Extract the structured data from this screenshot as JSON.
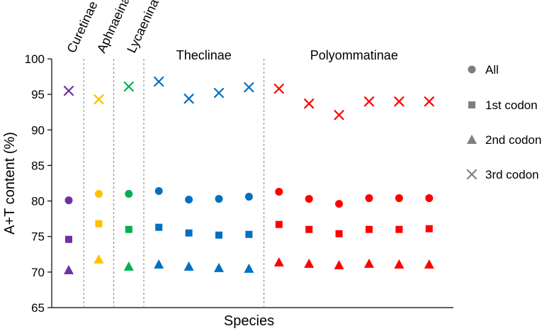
{
  "chart_data": {
    "type": "scatter",
    "title": "",
    "xlabel": "Species",
    "ylabel": "A+T content (%)",
    "ylim": [
      65,
      100
    ],
    "yticks": [
      65,
      70,
      75,
      80,
      85,
      90,
      95,
      100
    ],
    "grid": false,
    "legend_position": "right",
    "groups": [
      {
        "name": "Curetinae",
        "color": "#7030A0",
        "count": 1
      },
      {
        "name": "Aphnaeinae",
        "color": "#FFC000",
        "count": 1
      },
      {
        "name": "Lycaeninae",
        "color": "#00B050",
        "count": 1
      },
      {
        "name": "Theclinae",
        "color": "#0070C0",
        "count": 4
      },
      {
        "name": "Polyommatinae",
        "color": "#FF0000",
        "count": 6
      }
    ],
    "species_group": [
      0,
      1,
      2,
      3,
      3,
      3,
      3,
      4,
      4,
      4,
      4,
      4,
      4
    ],
    "series": [
      {
        "name": "All",
        "marker": "circle",
        "values": [
          80.1,
          81.0,
          81.0,
          81.4,
          80.2,
          80.3,
          80.6,
          81.3,
          80.3,
          79.6,
          80.4,
          80.4,
          80.4
        ]
      },
      {
        "name": "1st codon",
        "marker": "square",
        "values": [
          74.6,
          76.8,
          76.0,
          76.3,
          75.5,
          75.2,
          75.3,
          76.7,
          76.0,
          75.4,
          76.0,
          76.0,
          76.1
        ]
      },
      {
        "name": "2nd codon",
        "marker": "triangle",
        "values": [
          70.3,
          71.8,
          70.8,
          71.1,
          70.8,
          70.6,
          70.5,
          71.4,
          71.2,
          71.0,
          71.2,
          71.1,
          71.1
        ]
      },
      {
        "name": "3rd codon",
        "marker": "cross",
        "values": [
          95.5,
          94.3,
          96.1,
          96.8,
          94.4,
          95.2,
          96.0,
          95.8,
          93.7,
          92.1,
          94.0,
          94.0,
          94.0
        ]
      }
    ],
    "legend_color": "#7F7F7F"
  }
}
